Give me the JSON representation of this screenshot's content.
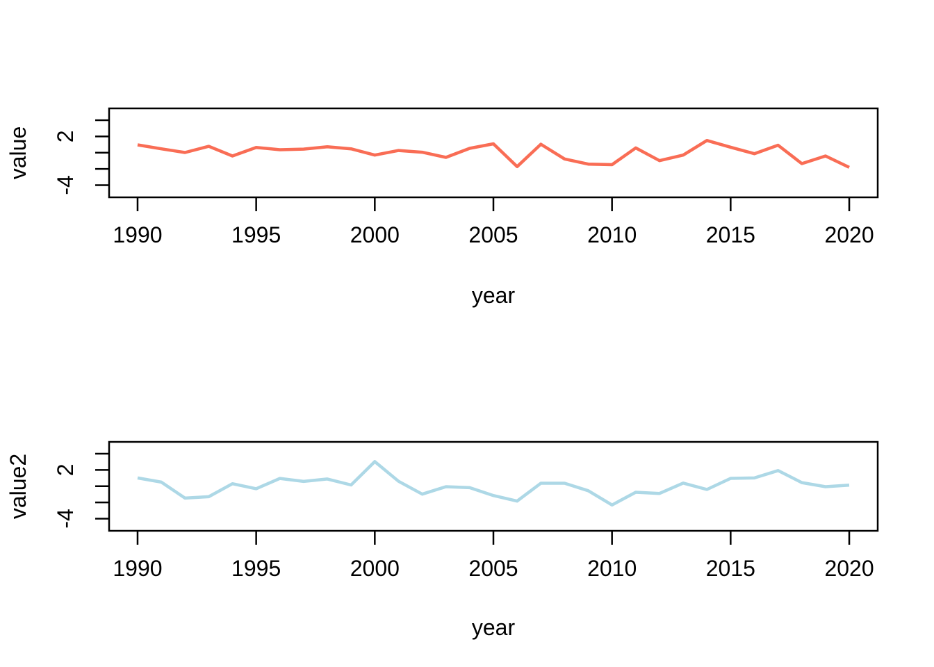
{
  "page": {
    "background": "#ffffff",
    "axis_color": "#000000",
    "text_color": "#000000"
  },
  "chart_data": [
    {
      "type": "line",
      "title": "",
      "xlabel": "year",
      "ylabel": "value",
      "grid": false,
      "legend": "none",
      "xlim": [
        1988.8,
        2021.2
      ],
      "ylim": [
        -5.5,
        5.45
      ],
      "x_ticks": {
        "values": [
          1990,
          1995,
          2000,
          2005,
          2010,
          2015,
          2020
        ],
        "labels": [
          "1990",
          "1995",
          "2000",
          "2005",
          "2010",
          "2015",
          "2020"
        ]
      },
      "y_ticks": {
        "values": [
          4,
          2,
          0,
          -2,
          -4
        ],
        "labels": [
          "",
          "2",
          "",
          "",
          "-4"
        ]
      },
      "x": [
        1990,
        1991,
        1992,
        1993,
        1994,
        1995,
        1996,
        1997,
        1998,
        1999,
        2000,
        2001,
        2002,
        2003,
        2004,
        2005,
        2006,
        2007,
        2008,
        2009,
        2010,
        2011,
        2012,
        2013,
        2014,
        2015,
        2016,
        2017,
        2018,
        2019,
        2020
      ],
      "series": [
        {
          "name": "value",
          "color": "#F96D55",
          "values": [
            0.96,
            0.47,
            0.02,
            0.78,
            -0.41,
            0.64,
            0.36,
            0.44,
            0.73,
            0.47,
            -0.3,
            0.27,
            0.05,
            -0.58,
            0.53,
            1.09,
            -1.72,
            1.04,
            -0.78,
            -1.41,
            -1.48,
            0.58,
            -0.98,
            -0.3,
            1.5,
            0.67,
            -0.13,
            0.92,
            -1.35,
            -0.41,
            -1.81
          ]
        }
      ]
    },
    {
      "type": "line",
      "title": "",
      "xlabel": "year",
      "ylabel": "value2",
      "grid": false,
      "legend": "none",
      "xlim": [
        1988.8,
        2021.2
      ],
      "ylim": [
        -5.5,
        5.45
      ],
      "x_ticks": {
        "values": [
          1990,
          1995,
          2000,
          2005,
          2010,
          2015,
          2020
        ],
        "labels": [
          "1990",
          "1995",
          "2000",
          "2005",
          "2010",
          "2015",
          "2020"
        ]
      },
      "y_ticks": {
        "values": [
          4,
          2,
          0,
          -2,
          -4
        ],
        "labels": [
          "",
          "2",
          "",
          "",
          "-4"
        ]
      },
      "x": [
        1990,
        1991,
        1992,
        1993,
        1994,
        1995,
        1996,
        1997,
        1998,
        1999,
        2000,
        2001,
        2002,
        2003,
        2004,
        2005,
        2006,
        2007,
        2008,
        2009,
        2010,
        2011,
        2012,
        2013,
        2014,
        2015,
        2016,
        2017,
        2018,
        2019,
        2020
      ],
      "series": [
        {
          "name": "value2",
          "color": "#ADD8E6",
          "values": [
            1.01,
            0.5,
            -1.47,
            -1.3,
            0.3,
            -0.32,
            0.95,
            0.58,
            0.88,
            0.15,
            3.02,
            0.6,
            -0.98,
            -0.07,
            -0.19,
            -1.15,
            -1.84,
            0.36,
            0.36,
            -0.56,
            -2.32,
            -0.75,
            -0.9,
            0.38,
            -0.41,
            0.96,
            1.01,
            1.92,
            0.44,
            -0.07,
            0.13
          ]
        }
      ]
    }
  ]
}
